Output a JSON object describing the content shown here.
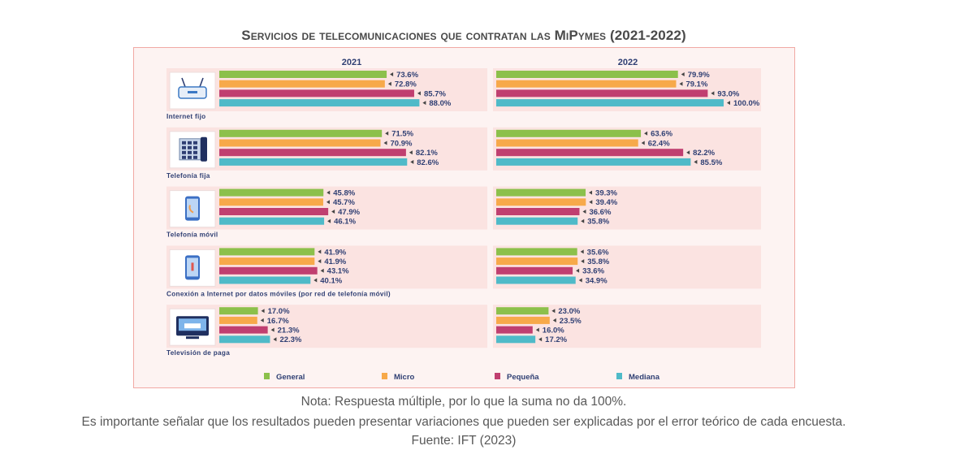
{
  "title": "Servicios de telecomunicaciones que contratan las MiPymes (2021-2022)",
  "notes": {
    "line1": "Nota: Respuesta múltiple, por lo que la suma no da 100%.",
    "line2": "Es importante señalar que los resultados pueden presentar variaciones que pueden ser explicadas por el error teórico de cada encuesta.",
    "source": "Fuente: IFT (2023)"
  },
  "colors": {
    "General": "#8cc04b",
    "Micro": "#f7a94a",
    "Pequeña": "#c03f70",
    "Mediana": "#4fbac8",
    "label": "#2f3f73",
    "arrow": "#444444",
    "category_label": "#2f3f73"
  },
  "chart_data": {
    "type": "bar",
    "orientation": "horizontal",
    "title": "Servicios de telecomunicaciones que contratan las MiPymes (2021-2022)",
    "unit": "%",
    "panels": [
      "2021",
      "2022"
    ],
    "series_names": [
      "General",
      "Micro",
      "Pequeña",
      "Mediana"
    ],
    "xlim": [
      0,
      100
    ],
    "categories": [
      {
        "label": "Internet fijo",
        "icon": "router-icon",
        "values": {
          "2021": [
            73.6,
            72.8,
            85.7,
            88.0
          ],
          "2022": [
            79.9,
            79.1,
            93.0,
            100.0
          ]
        },
        "labels": {
          "2021": [
            "73.6%",
            "72.8%",
            "85.7%",
            "88.0%"
          ],
          "2022": [
            "79.9%",
            "79.1%",
            "93.0%",
            "100.0%"
          ]
        }
      },
      {
        "label": "Telefonía fija",
        "icon": "landline-phone-icon",
        "values": {
          "2021": [
            71.5,
            70.9,
            82.1,
            82.6
          ],
          "2022": [
            63.6,
            62.4,
            82.2,
            85.5
          ]
        },
        "labels": {
          "2021": [
            "71.5%",
            "70.9%",
            "82.1%",
            "82.6%"
          ],
          "2022": [
            "63.6%",
            "62.4%",
            "82.2%",
            "85.5%"
          ]
        }
      },
      {
        "label": "Telefonía móvil",
        "icon": "mobile-phone-icon",
        "values": {
          "2021": [
            45.8,
            45.7,
            47.9,
            46.1
          ],
          "2022": [
            39.3,
            39.4,
            36.6,
            35.8
          ]
        },
        "labels": {
          "2021": [
            "45.8%",
            "45.7%",
            "47.9%",
            "46.1%"
          ],
          "2022": [
            "39.3%",
            "39.4%",
            "36.6%",
            "35.8%"
          ]
        }
      },
      {
        "label": "Conexión a Internet por datos móviles (por red de telefonía móvil)",
        "icon": "mobile-data-icon",
        "values": {
          "2021": [
            41.9,
            41.9,
            43.1,
            40.1
          ],
          "2022": [
            35.6,
            35.8,
            33.6,
            34.9
          ]
        },
        "labels": {
          "2021": [
            "41.9%",
            "41.9%",
            "43.1%",
            "40.1%"
          ],
          "2022": [
            "35.6%",
            "35.8%",
            "33.6%",
            "34.9%"
          ]
        }
      },
      {
        "label": "Televisión de paga",
        "icon": "tv-icon",
        "values": {
          "2021": [
            17.0,
            16.7,
            21.3,
            22.3
          ],
          "2022": [
            23.0,
            23.5,
            16.0,
            17.2
          ]
        },
        "labels": {
          "2021": [
            "17.0%",
            "16.7%",
            "21.3%",
            "22.3%"
          ],
          "2022": [
            "23.0%",
            "23.5%",
            "16.0%",
            "17.2%"
          ]
        }
      }
    ],
    "legend": [
      "General",
      "Micro",
      "Pequeña",
      "Mediana"
    ],
    "legend_position": "bottom"
  }
}
